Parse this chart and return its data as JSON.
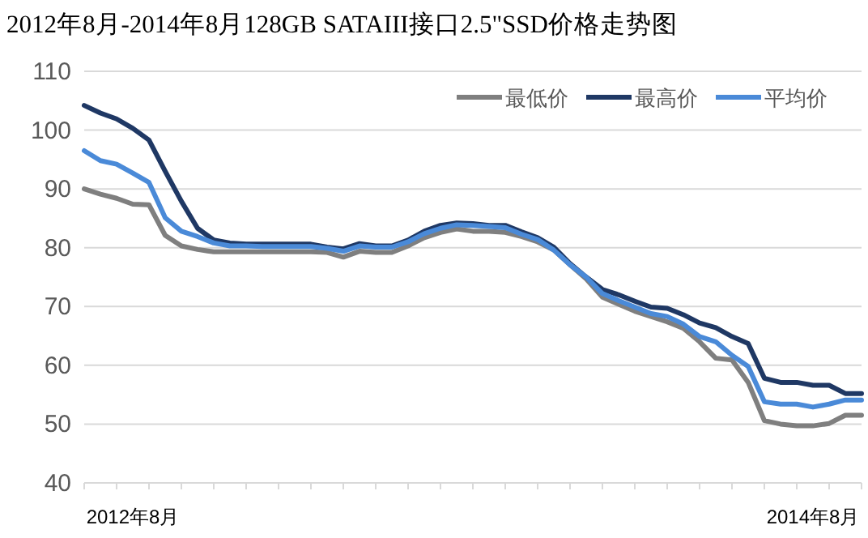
{
  "chart_data": {
    "type": "line",
    "title": "2012年8月-2014年8月128GB SATAIII接口2.5\"SSD价格走势图",
    "categories": [
      null,
      null,
      null,
      "2012年8月",
      null,
      null,
      null,
      null,
      null,
      null,
      null,
      null,
      null,
      null,
      null,
      null,
      null,
      null,
      null,
      null,
      null,
      null,
      null,
      null,
      null,
      null,
      null,
      null,
      null,
      null,
      null,
      null,
      null,
      null,
      null,
      null,
      null,
      null,
      null,
      null,
      null,
      null,
      null,
      null,
      null,
      "2014年8月",
      null,
      null,
      null
    ],
    "series": [
      {
        "name": "最低价",
        "color": "#7f7f7f",
        "values": [
          90,
          89.1,
          88.4,
          87.4,
          87.3,
          82.1,
          80.3,
          79.7,
          79.3,
          79.3,
          79.3,
          79.3,
          79.3,
          79.3,
          79.3,
          79.2,
          78.4,
          79.4,
          79.2,
          79.2,
          80.3,
          81.7,
          82.6,
          83.2,
          82.8,
          82.8,
          82.6,
          81.9,
          81,
          79.6,
          77.1,
          74.7,
          71.6,
          70.4,
          69.2,
          68.3,
          67.4,
          66.3,
          64,
          61.2,
          60.9,
          57.1,
          50.6,
          50,
          49.7,
          49.7,
          50.1,
          51.5,
          51.5
        ]
      },
      {
        "name": "最高价",
        "color": "#1f3864",
        "values": [
          104.2,
          102.9,
          101.9,
          100.3,
          98.3,
          93,
          87.9,
          83.3,
          81.3,
          80.8,
          80.6,
          80.6,
          80.6,
          80.6,
          80.6,
          80.1,
          79.8,
          80.7,
          80.3,
          80.3,
          81.3,
          82.8,
          83.8,
          84.2,
          84.1,
          83.8,
          83.8,
          82.7,
          81.7,
          80.1,
          77.3,
          75,
          72.9,
          72,
          70.9,
          69.9,
          69.7,
          68.6,
          67.2,
          66.4,
          64.9,
          63.7,
          57.8,
          57.1,
          57.1,
          56.6,
          56.6,
          55.2,
          55.2
        ]
      },
      {
        "name": "平均价",
        "color": "#4a8ad8",
        "values": [
          96.5,
          94.8,
          94.2,
          92.7,
          91.1,
          85.1,
          82.8,
          81.9,
          80.8,
          80.3,
          80.3,
          80.2,
          80.2,
          80.2,
          80.2,
          79.9,
          79.4,
          80.3,
          80.1,
          80.1,
          81,
          82.4,
          83.3,
          83.9,
          83.8,
          83.6,
          83.4,
          82.3,
          81.4,
          79.6,
          77.1,
          75,
          72.2,
          71,
          69.9,
          68.8,
          68.3,
          67,
          64.9,
          64,
          61.7,
          59.8,
          53.8,
          53.4,
          53.4,
          52.9,
          53.4,
          54.1,
          54.1
        ]
      }
    ],
    "ylim": [
      40,
      110
    ],
    "yticks": [
      40,
      50,
      60,
      70,
      80,
      90,
      100,
      110
    ],
    "grid": "y",
    "legend": "top right",
    "marker": "none",
    "line_style": "solid"
  }
}
